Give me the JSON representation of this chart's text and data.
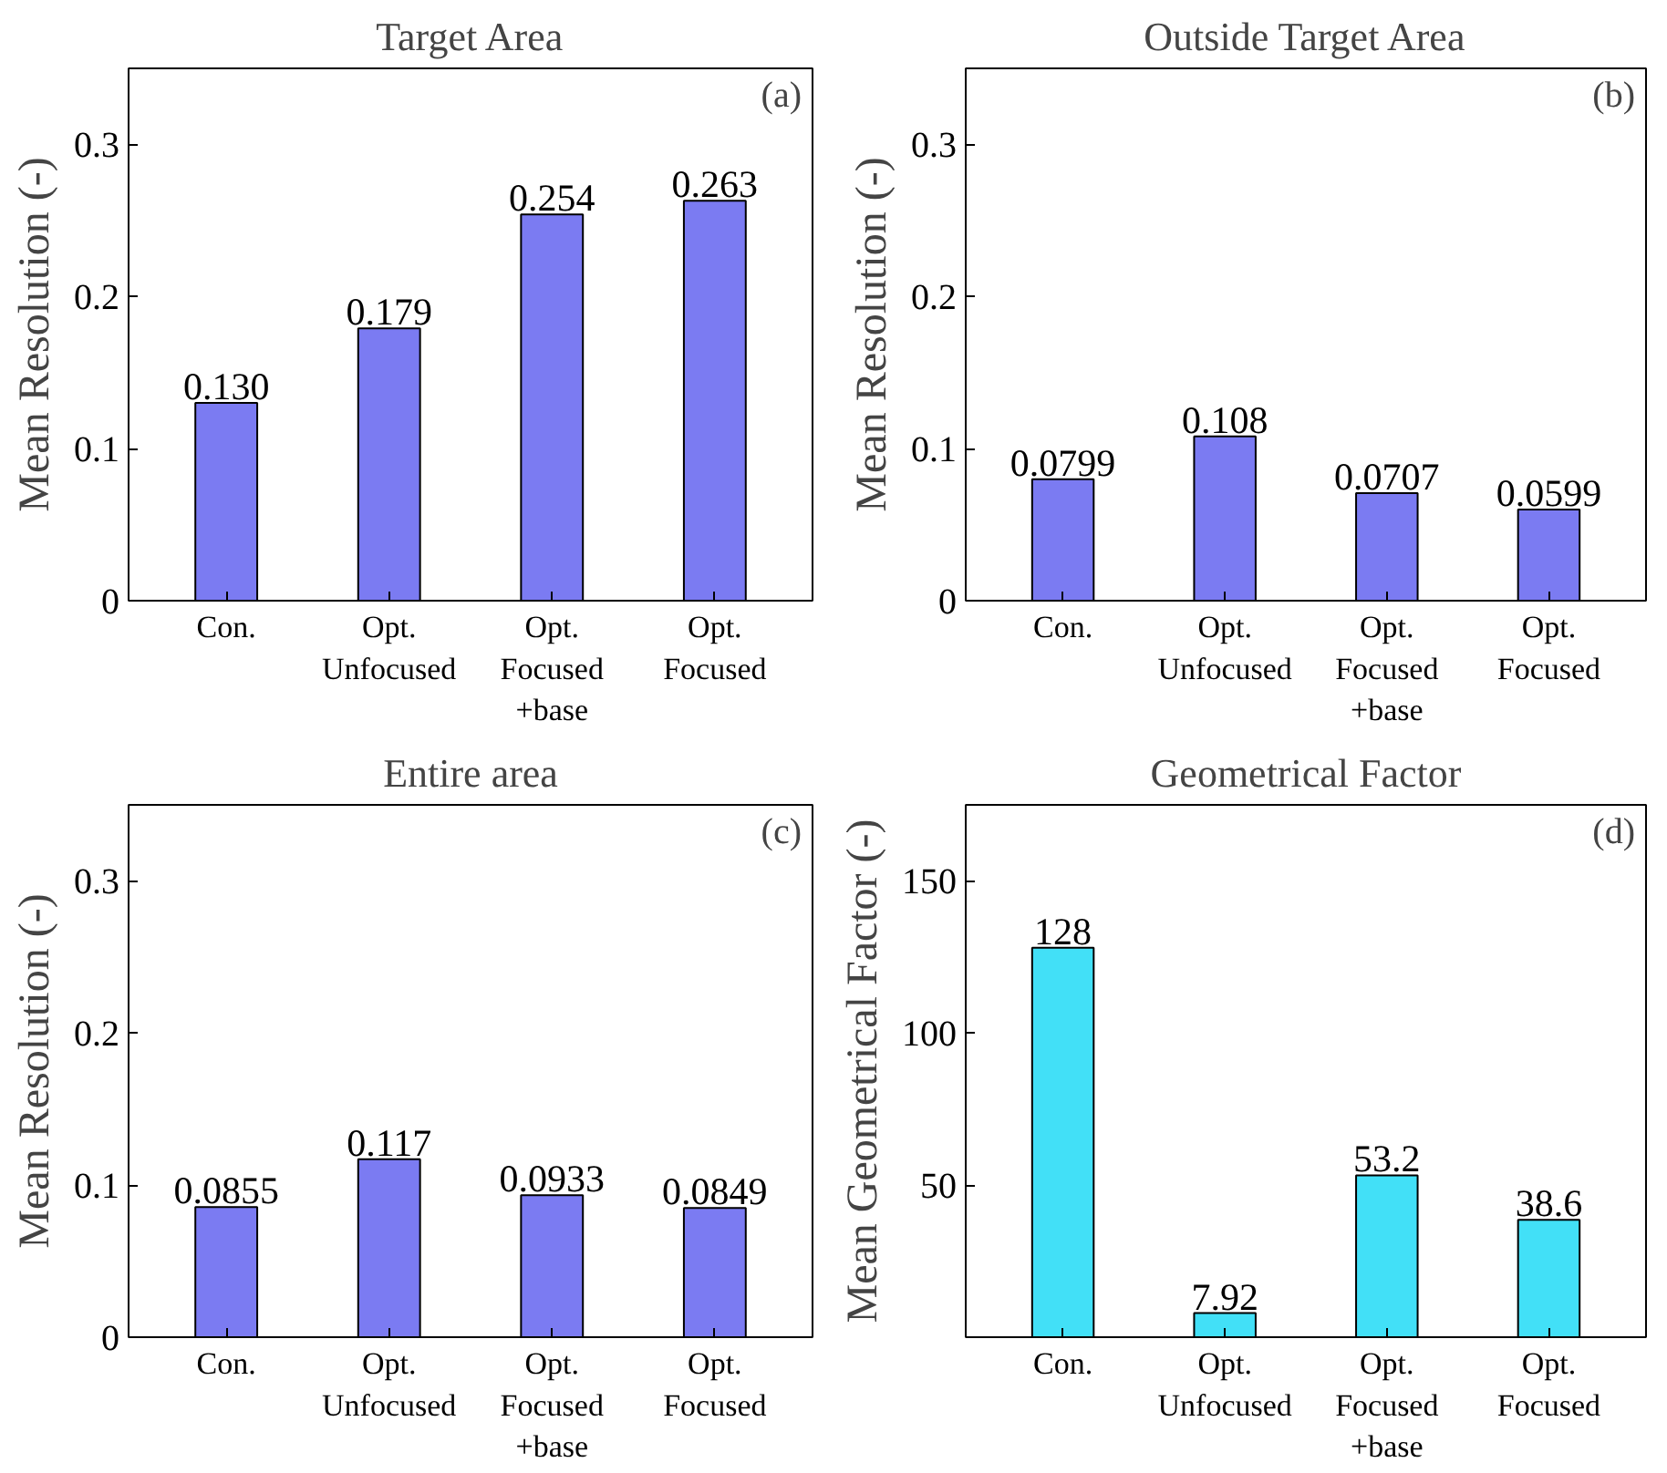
{
  "chart_data": [
    {
      "type": "bar",
      "title": "Target Area",
      "ylabel": "Mean Resolution (-)",
      "annotations": [
        "(a)"
      ],
      "categories": [
        "Con.",
        "Opt.\nUnfocused",
        "Opt.\nFocused\n+base",
        "Opt.\nFocused"
      ],
      "values": [
        0.13,
        0.179,
        0.254,
        0.263
      ],
      "value_labels": [
        "0.130",
        "0.179",
        "0.254",
        "0.263"
      ],
      "color": "#7b7bf2",
      "ylim": [
        0,
        0.35
      ],
      "yticks": [
        0,
        0.1,
        0.2,
        0.3
      ],
      "grid": false
    },
    {
      "type": "bar",
      "title": "Outside Target Area",
      "ylabel": "Mean Resolution (-)",
      "annotations": [
        "(b)"
      ],
      "categories": [
        "Con.",
        "Opt.\nUnfocused",
        "Opt.\nFocused\n+base",
        "Opt.\nFocused"
      ],
      "values": [
        0.0799,
        0.108,
        0.0707,
        0.0599
      ],
      "value_labels": [
        "0.0799",
        "0.108",
        "0.0707",
        "0.0599"
      ],
      "color": "#7b7bf2",
      "ylim": [
        0,
        0.35
      ],
      "yticks": [
        0,
        0.1,
        0.2,
        0.3
      ],
      "grid": false
    },
    {
      "type": "bar",
      "title": "Entire area",
      "ylabel": "Mean Resolution (-)",
      "annotations": [
        "(c)"
      ],
      "categories": [
        "Con.",
        "Opt.\nUnfocused",
        "Opt.\nFocused\n+base",
        "Opt.\nFocused"
      ],
      "values": [
        0.0855,
        0.117,
        0.0933,
        0.0849
      ],
      "value_labels": [
        "0.0855",
        "0.117",
        "0.0933",
        "0.0849"
      ],
      "color": "#7b7bf2",
      "ylim": [
        0,
        0.35
      ],
      "yticks": [
        0,
        0.1,
        0.2,
        0.3
      ],
      "grid": false
    },
    {
      "type": "bar",
      "title": "Geometrical Factor",
      "ylabel": "Mean Geometrical Factor (-)",
      "annotations": [
        "(d)"
      ],
      "categories": [
        "Con.",
        "Opt.\nUnfocused",
        "Opt.\nFocused\n+base",
        "Opt.\nFocused"
      ],
      "values": [
        128,
        7.92,
        53.2,
        38.6
      ],
      "value_labels": [
        "128",
        "7.92",
        "53.2",
        "38.6"
      ],
      "color": "#42e0f7",
      "ylim": [
        0,
        175
      ],
      "yticks": [
        50,
        100,
        150
      ],
      "grid": false
    }
  ]
}
